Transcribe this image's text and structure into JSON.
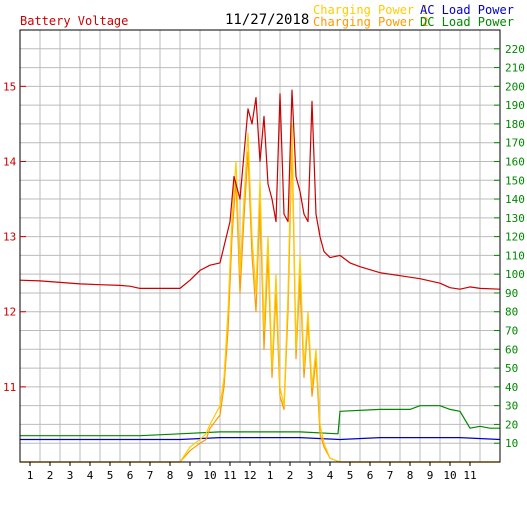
{
  "header": {
    "date": "11/27/2018",
    "left_axis_label": "Battery Voltage",
    "legend": [
      {
        "label": "Charging Power 1",
        "color": "#ffcc00"
      },
      {
        "label": "Charging Power 2",
        "color": "#ff9900"
      },
      {
        "label": "AC Load Power",
        "color": "#0000cc"
      },
      {
        "label": "DC Load Power",
        "color": "#008800"
      }
    ]
  },
  "colors": {
    "voltage": "#cc0000",
    "charging1": "#ffcc00",
    "charging2": "#ff9900",
    "ac": "#0000cc",
    "dc": "#008800",
    "grid": "#bbbbbb",
    "frame": "#000000"
  },
  "chart_data": {
    "type": "line",
    "title": "11/27/2018",
    "x_ticks": [
      "1",
      "2",
      "3",
      "4",
      "5",
      "6",
      "7",
      "8",
      "9",
      "10",
      "11",
      "12",
      "1",
      "2",
      "3",
      "4",
      "5",
      "6",
      "7",
      "8",
      "9",
      "10",
      "11"
    ],
    "x_range_hours": [
      0,
      24
    ],
    "left_axis": {
      "label": "Battery Voltage",
      "ticks": [
        "11",
        "12",
        "13",
        "14",
        "15"
      ],
      "range": [
        10.0,
        15.75
      ]
    },
    "right_axis": {
      "ticks": [
        "10",
        "20",
        "30",
        "40",
        "50",
        "60",
        "70",
        "80",
        "90",
        "100",
        "110",
        "120",
        "130",
        "140",
        "150",
        "160",
        "170",
        "180",
        "190",
        "200",
        "210",
        "220"
      ],
      "range": [
        0,
        230
      ]
    },
    "grid": true,
    "series": [
      {
        "name": "Battery Voltage",
        "axis": "left",
        "color": "#cc0000",
        "points": [
          [
            0,
            12.42
          ],
          [
            1,
            12.41
          ],
          [
            2,
            12.39
          ],
          [
            3,
            12.37
          ],
          [
            4,
            12.36
          ],
          [
            5,
            12.35
          ],
          [
            5.5,
            12.34
          ],
          [
            6,
            12.31
          ],
          [
            7,
            12.31
          ],
          [
            8,
            12.31
          ],
          [
            8.5,
            12.42
          ],
          [
            9,
            12.55
          ],
          [
            9.5,
            12.62
          ],
          [
            10,
            12.65
          ],
          [
            10.5,
            13.2
          ],
          [
            10.7,
            13.8
          ],
          [
            11,
            13.5
          ],
          [
            11.2,
            14.1
          ],
          [
            11.4,
            14.7
          ],
          [
            11.6,
            14.5
          ],
          [
            11.8,
            14.85
          ],
          [
            12,
            14.0
          ],
          [
            12.2,
            14.6
          ],
          [
            12.4,
            13.7
          ],
          [
            12.6,
            13.5
          ],
          [
            12.8,
            13.2
          ],
          [
            13,
            14.9
          ],
          [
            13.2,
            13.3
          ],
          [
            13.4,
            13.2
          ],
          [
            13.6,
            14.95
          ],
          [
            13.8,
            13.8
          ],
          [
            14,
            13.6
          ],
          [
            14.2,
            13.3
          ],
          [
            14.4,
            13.2
          ],
          [
            14.6,
            14.8
          ],
          [
            14.8,
            13.3
          ],
          [
            15,
            13.0
          ],
          [
            15.2,
            12.8
          ],
          [
            15.5,
            12.72
          ],
          [
            16,
            12.75
          ],
          [
            16.5,
            12.65
          ],
          [
            17,
            12.6
          ],
          [
            18,
            12.52
          ],
          [
            19,
            12.48
          ],
          [
            20,
            12.44
          ],
          [
            21,
            12.38
          ],
          [
            21.5,
            12.32
          ],
          [
            22,
            12.3
          ],
          [
            22.5,
            12.33
          ],
          [
            23,
            12.31
          ],
          [
            24,
            12.3
          ]
        ]
      },
      {
        "name": "Charging Power 1",
        "axis": "right",
        "color": "#ffcc00",
        "points": [
          [
            0,
            0
          ],
          [
            7.8,
            0
          ],
          [
            8,
            0
          ],
          [
            8.5,
            8
          ],
          [
            9,
            12
          ],
          [
            9.3,
            15
          ],
          [
            9.5,
            20
          ],
          [
            10,
            30
          ],
          [
            10.2,
            45
          ],
          [
            10.4,
            80
          ],
          [
            10.6,
            130
          ],
          [
            10.8,
            160
          ],
          [
            11,
            100
          ],
          [
            11.2,
            140
          ],
          [
            11.4,
            175
          ],
          [
            11.6,
            120
          ],
          [
            11.8,
            90
          ],
          [
            12,
            150
          ],
          [
            12.2,
            70
          ],
          [
            12.4,
            120
          ],
          [
            12.6,
            50
          ],
          [
            12.8,
            100
          ],
          [
            13,
            40
          ],
          [
            13.2,
            30
          ],
          [
            13.4,
            90
          ],
          [
            13.6,
            180
          ],
          [
            13.8,
            60
          ],
          [
            14,
            110
          ],
          [
            14.2,
            50
          ],
          [
            14.4,
            80
          ],
          [
            14.6,
            40
          ],
          [
            14.8,
            60
          ],
          [
            15,
            20
          ],
          [
            15.2,
            10
          ],
          [
            15.5,
            2
          ],
          [
            16,
            0
          ],
          [
            24,
            0
          ]
        ]
      },
      {
        "name": "Charging Power 2",
        "axis": "right",
        "color": "#ff9900",
        "points": [
          [
            0,
            0
          ],
          [
            7.8,
            0
          ],
          [
            8,
            0
          ],
          [
            8.5,
            6
          ],
          [
            9,
            10
          ],
          [
            9.3,
            12
          ],
          [
            9.5,
            18
          ],
          [
            10,
            25
          ],
          [
            10.2,
            40
          ],
          [
            10.4,
            70
          ],
          [
            10.6,
            120
          ],
          [
            10.8,
            150
          ],
          [
            11,
            90
          ],
          [
            11.2,
            130
          ],
          [
            11.4,
            165
          ],
          [
            11.6,
            110
          ],
          [
            11.8,
            80
          ],
          [
            12,
            140
          ],
          [
            12.2,
            60
          ],
          [
            12.4,
            110
          ],
          [
            12.6,
            45
          ],
          [
            12.8,
            90
          ],
          [
            13,
            35
          ],
          [
            13.2,
            28
          ],
          [
            13.4,
            80
          ],
          [
            13.6,
            170
          ],
          [
            13.8,
            55
          ],
          [
            14,
            100
          ],
          [
            14.2,
            45
          ],
          [
            14.4,
            75
          ],
          [
            14.6,
            35
          ],
          [
            14.8,
            55
          ],
          [
            15,
            15
          ],
          [
            15.2,
            8
          ],
          [
            15.5,
            2
          ],
          [
            16,
            0
          ],
          [
            24,
            0
          ]
        ]
      },
      {
        "name": "AC Load Power",
        "axis": "right",
        "color": "#0000cc",
        "points": [
          [
            0,
            12
          ],
          [
            2,
            12
          ],
          [
            4,
            12
          ],
          [
            6,
            12
          ],
          [
            8,
            12
          ],
          [
            10,
            13
          ],
          [
            12,
            13
          ],
          [
            14,
            13
          ],
          [
            16,
            12
          ],
          [
            18,
            13
          ],
          [
            20,
            13
          ],
          [
            22,
            13
          ],
          [
            24,
            12
          ]
        ]
      },
      {
        "name": "DC Load Power",
        "axis": "right",
        "color": "#008800",
        "points": [
          [
            0,
            14
          ],
          [
            2,
            14
          ],
          [
            4,
            14
          ],
          [
            6,
            14
          ],
          [
            8,
            15
          ],
          [
            10,
            16
          ],
          [
            12,
            16
          ],
          [
            14,
            16
          ],
          [
            15.9,
            15
          ],
          [
            16,
            27
          ],
          [
            18,
            28
          ],
          [
            19.5,
            28
          ],
          [
            20,
            30
          ],
          [
            21,
            30
          ],
          [
            21.5,
            28
          ],
          [
            22,
            27
          ],
          [
            22.5,
            18
          ],
          [
            23,
            19
          ],
          [
            23.5,
            18
          ],
          [
            24,
            18
          ]
        ]
      }
    ]
  }
}
